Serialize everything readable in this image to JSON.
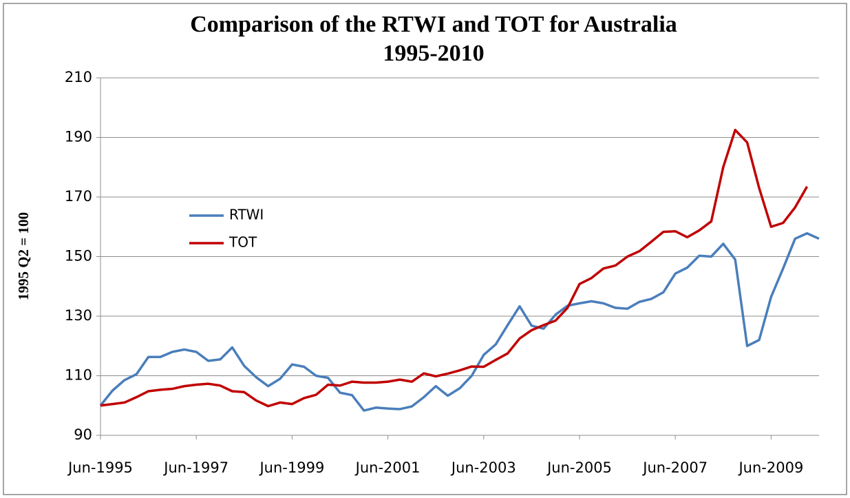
{
  "chart_data": {
    "type": "line",
    "title": "Comparison of the RTWI and TOT for Australia",
    "subtitle": "1995-2010",
    "y_label": "1995 Q2 = 100",
    "categories": [
      "Jun-1995",
      null,
      null,
      null,
      null,
      null,
      null,
      null,
      "Jun-1997",
      null,
      null,
      null,
      null,
      null,
      null,
      null,
      "Jun-1999",
      null,
      null,
      null,
      null,
      null,
      null,
      null,
      "Jun-2001",
      null,
      null,
      null,
      null,
      null,
      null,
      null,
      "Jun-2003",
      null,
      null,
      null,
      null,
      null,
      null,
      null,
      "Jun-2005",
      null,
      null,
      null,
      null,
      null,
      null,
      null,
      "Jun-2007",
      null,
      null,
      null,
      null,
      null,
      null,
      null,
      "Jun-2009",
      null,
      null,
      null,
      null
    ],
    "series": [
      {
        "name": "RTWI",
        "color": "#4a7ebb",
        "values": [
          100,
          105,
          108.5,
          110.5,
          116.3,
          116.3,
          118,
          118.8,
          118,
          115,
          115.5,
          119.5,
          113.3,
          109.5,
          106.5,
          109,
          113.8,
          113,
          110,
          109.3,
          104.3,
          103.5,
          98.3,
          99.3,
          99,
          98.8,
          99.7,
          102.8,
          106.5,
          103.3,
          105.8,
          110,
          117,
          120.5,
          127,
          133.3,
          126.8,
          125.8,
          130.5,
          133.5,
          134.3,
          135,
          134.3,
          132.8,
          132.5,
          134.8,
          135.8,
          138,
          144.3,
          146.3,
          150.3,
          150,
          154.3,
          149,
          120,
          122,
          136.5,
          146,
          156,
          157.8,
          156
        ]
      },
      {
        "name": "TOT",
        "color": "#c00000",
        "values": [
          100,
          100.5,
          101,
          102.8,
          104.8,
          105.3,
          105.6,
          106.5,
          107,
          107.3,
          106.7,
          104.8,
          104.5,
          101.7,
          99.8,
          101,
          100.5,
          102.5,
          103.6,
          107,
          106.7,
          108,
          107.7,
          107.7,
          108,
          108.7,
          108,
          110.8,
          109.8,
          110.7,
          111.8,
          113.1,
          113,
          115.3,
          117.5,
          122.5,
          125.3,
          127,
          128.5,
          132.8,
          140.8,
          142.8,
          146,
          147,
          150,
          151.8,
          155,
          158.3,
          158.5,
          156.5,
          158.8,
          161.8,
          180,
          192.5,
          188.3,
          173,
          160,
          161.3,
          166.5,
          173.5,
          null
        ]
      }
    ],
    "ylim": [
      90,
      210
    ],
    "yticks": [
      90,
      110,
      130,
      150,
      170,
      190,
      210
    ],
    "grid": true,
    "legend": "left"
  }
}
